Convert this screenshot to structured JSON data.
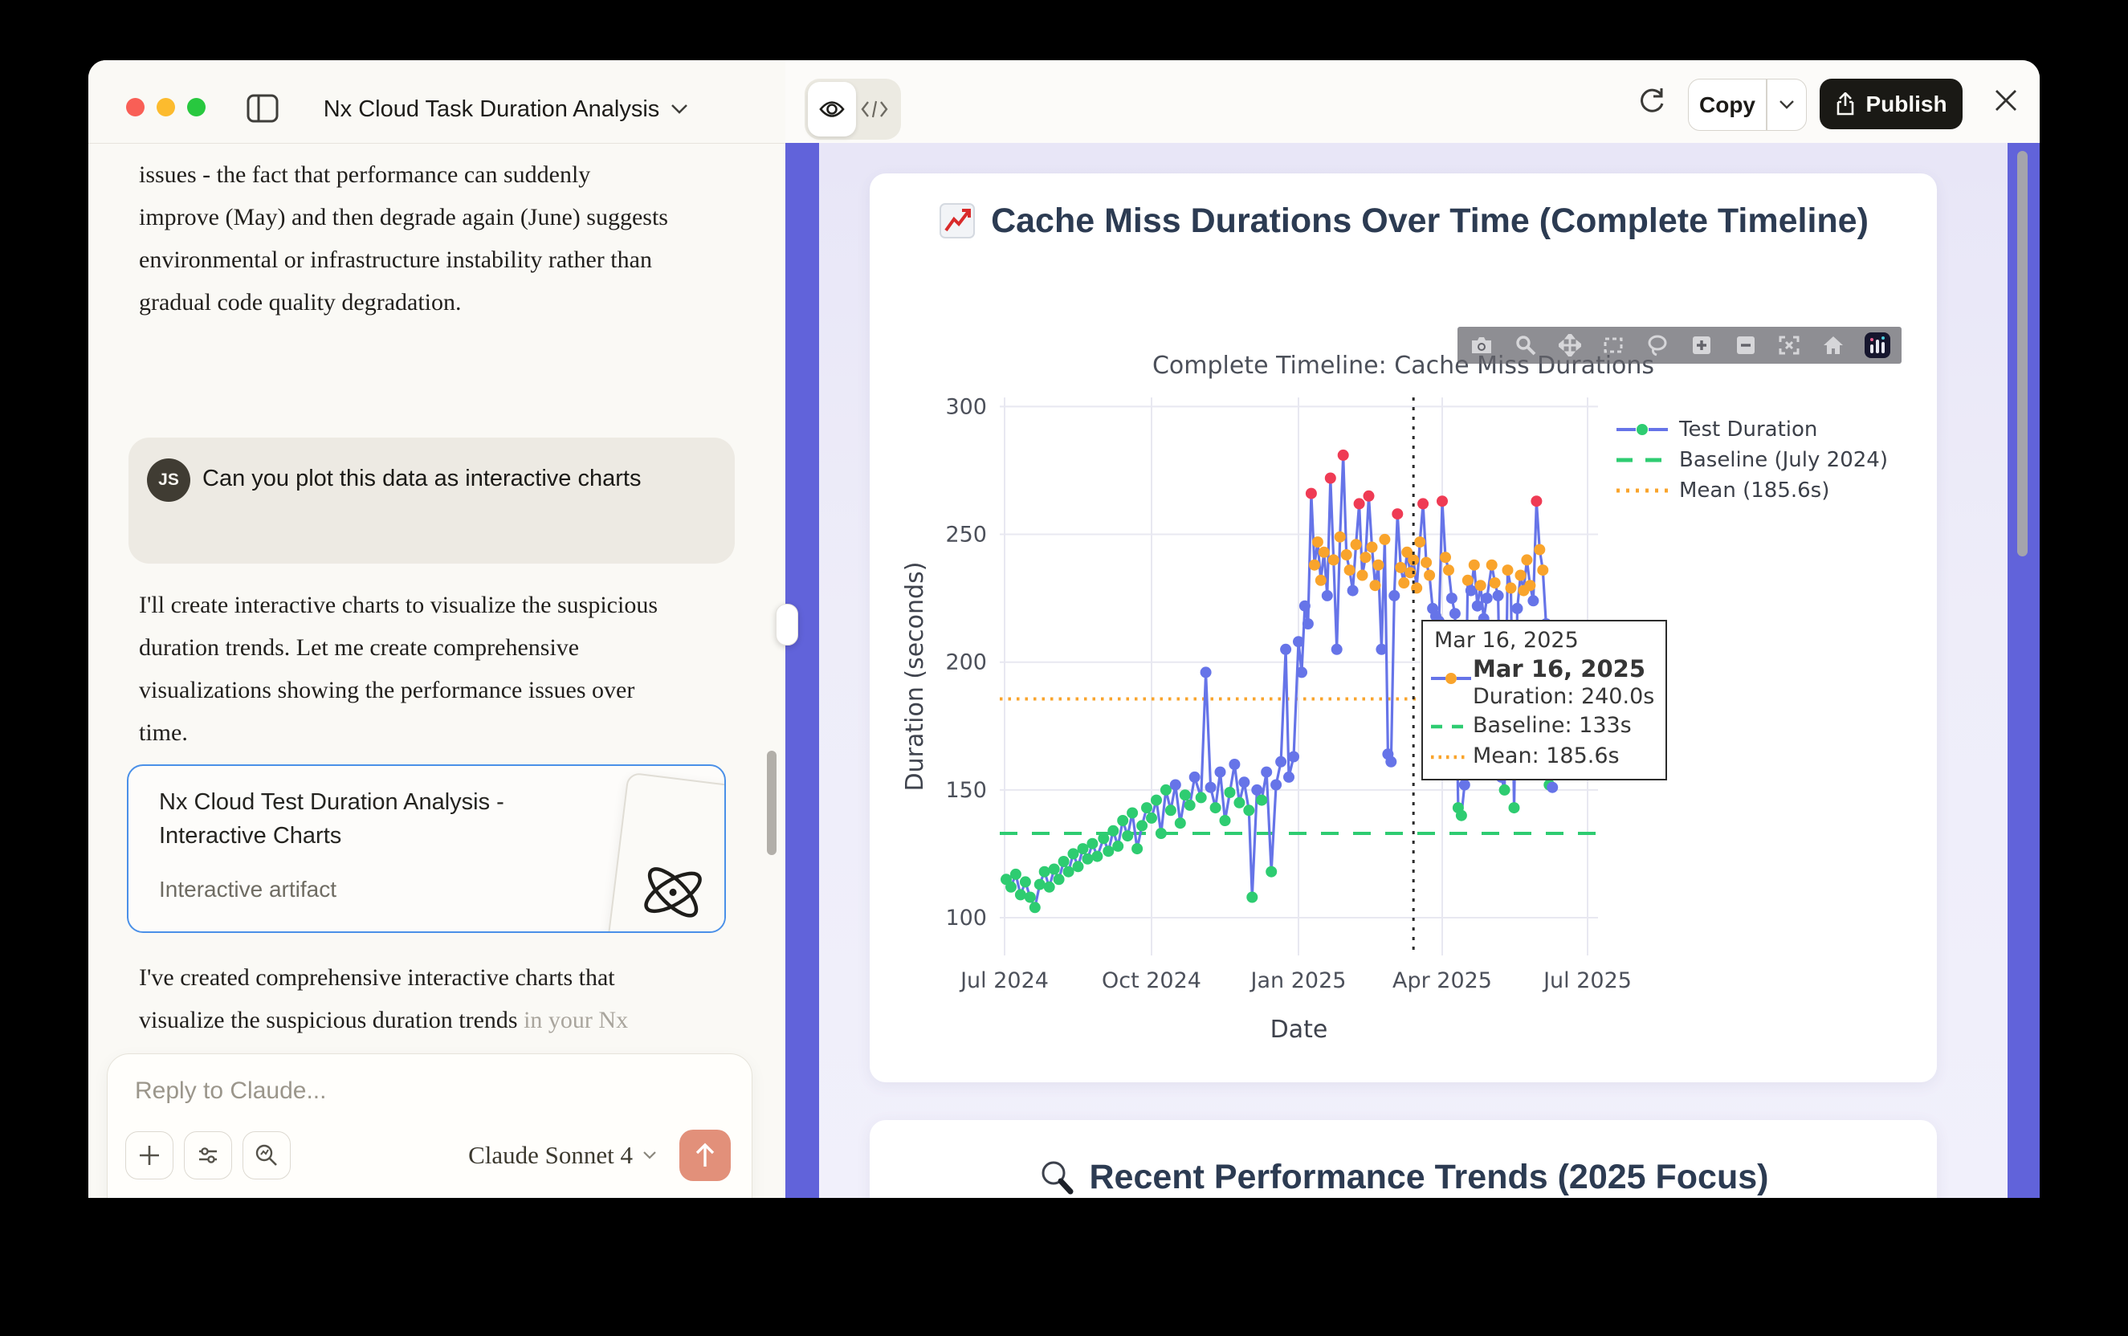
{
  "window": {
    "title": "Nx Cloud Task Duration Analysis",
    "traffic_light_colors": [
      "#f95f56",
      "#fcbb2e",
      "#28c83f"
    ]
  },
  "chat": {
    "paragraph1": "issues - the fact that performance can suddenly improve (May) and then degrade again (June) suggests environmental or infrastructure instability rather than gradual code quality degradation.",
    "avatar_initials": "JS",
    "user_message": "Can you plot this data as interactive charts",
    "paragraph2": "I'll create interactive charts to visualize the suspicious duration trends. Let me create comprehensive visualizations showing the performance issues over time.",
    "artifact_card": {
      "title": "Nx Cloud Test Duration Analysis - Interactive Charts",
      "subtitle": "Interactive artifact"
    },
    "paragraph3_visible": "I've created comprehensive interactive charts that visualize the suspicious duration trends",
    "paragraph3_faded": "in your Nx Cloud test data. Here's what the",
    "input_placeholder": "Reply to Claude...",
    "model_label": "Claude Sonnet 4"
  },
  "artifact_header": {
    "copy_label": "Copy",
    "publish_label": "Publish"
  },
  "cards": {
    "chart_card_title": "Cache Miss Durations Over Time (Complete Timeline)",
    "trends_card_title": "Recent Performance Trends (2025 Focus)"
  },
  "colors": {
    "accent_purple": "#6163da",
    "send_button": "#e2907a",
    "publish_bg": "#1a1915",
    "artifact_border": "#4a90e8",
    "heading_navy": "#2c3b52"
  },
  "chart_data": {
    "type": "line",
    "title": "Complete Timeline: Cache Miss Durations",
    "xlabel": "Date",
    "ylabel": "Duration (seconds)",
    "ylim": [
      85,
      304
    ],
    "grid": true,
    "legend_position": "right",
    "y_ticks": [
      100,
      150,
      200,
      250,
      300
    ],
    "x_ticks": [
      {
        "day": 0,
        "label": "Jul 2024"
      },
      {
        "day": 92,
        "label": "Oct 2024"
      },
      {
        "day": 184,
        "label": "Jan 2025"
      },
      {
        "day": 274,
        "label": "Apr 2025"
      },
      {
        "day": 365,
        "label": "Jul 2025"
      }
    ],
    "baseline_value": 133,
    "mean_value": 185.6,
    "legend": [
      "Test Duration",
      "Baseline (July 2024)",
      "Mean (185.6s)"
    ],
    "hover": {
      "day": 256,
      "date_header": "Mar 16, 2025",
      "date_bold": "Mar 16, 2025",
      "duration": "Duration: 240.0s",
      "baseline": "Baseline: 133s",
      "mean": "Mean: 185.6s"
    },
    "colors": {
      "line": "#6674e8",
      "grid": "#e8e8f1",
      "spike": "#2b2b2b",
      "mean": "#f9a42c",
      "baseline": "#2ecc71",
      "g": "#2ecc71",
      "b": "#6674e8",
      "o": "#f9a42c",
      "r": "#ef3b54"
    },
    "points": [
      [
        1,
        115,
        "g"
      ],
      [
        4,
        112,
        "g"
      ],
      [
        7,
        117,
        "g"
      ],
      [
        10,
        109,
        "g"
      ],
      [
        13,
        114,
        "g"
      ],
      [
        16,
        108,
        "g"
      ],
      [
        19,
        104,
        "g"
      ],
      [
        22,
        113,
        "g"
      ],
      [
        25,
        118,
        "g"
      ],
      [
        28,
        112,
        "g"
      ],
      [
        31,
        119,
        "g"
      ],
      [
        34,
        115,
        "g"
      ],
      [
        37,
        122,
        "g"
      ],
      [
        40,
        118,
        "g"
      ],
      [
        43,
        125,
        "g"
      ],
      [
        46,
        120,
        "g"
      ],
      [
        49,
        127,
        "g"
      ],
      [
        52,
        123,
        "g"
      ],
      [
        55,
        129,
        "g"
      ],
      [
        58,
        124,
        "g"
      ],
      [
        62,
        131,
        "g"
      ],
      [
        65,
        126,
        "g"
      ],
      [
        68,
        134,
        "g"
      ],
      [
        71,
        128,
        "g"
      ],
      [
        74,
        138,
        "g"
      ],
      [
        77,
        132,
        "g"
      ],
      [
        80,
        141,
        "g"
      ],
      [
        83,
        127,
        "g"
      ],
      [
        86,
        136,
        "g"
      ],
      [
        89,
        143,
        "g"
      ],
      [
        92,
        139,
        "g"
      ],
      [
        95,
        146,
        "g"
      ],
      [
        98,
        133,
        "g"
      ],
      [
        101,
        150,
        "g"
      ],
      [
        104,
        142,
        "g"
      ],
      [
        107,
        152,
        "b"
      ],
      [
        110,
        137,
        "g"
      ],
      [
        113,
        148,
        "g"
      ],
      [
        116,
        144,
        "g"
      ],
      [
        119,
        155,
        "b"
      ],
      [
        123,
        147,
        "g"
      ],
      [
        126,
        196,
        "b"
      ],
      [
        129,
        151,
        "b"
      ],
      [
        132,
        143,
        "g"
      ],
      [
        135,
        157,
        "b"
      ],
      [
        138,
        138,
        "g"
      ],
      [
        141,
        149,
        "g"
      ],
      [
        144,
        160,
        "b"
      ],
      [
        147,
        145,
        "g"
      ],
      [
        150,
        153,
        "b"
      ],
      [
        153,
        142,
        "g"
      ],
      [
        155,
        108,
        "g"
      ],
      [
        158,
        150,
        "b"
      ],
      [
        161,
        146,
        "g"
      ],
      [
        164,
        157,
        "b"
      ],
      [
        167,
        118,
        "g"
      ],
      [
        170,
        152,
        "b"
      ],
      [
        173,
        161,
        "b"
      ],
      [
        176,
        205,
        "b"
      ],
      [
        178,
        155,
        "b"
      ],
      [
        181,
        163,
        "b"
      ],
      [
        184,
        208,
        "b"
      ],
      [
        186,
        196,
        "b"
      ],
      [
        188,
        222,
        "b"
      ],
      [
        190,
        215,
        "b"
      ],
      [
        192,
        266,
        "r"
      ],
      [
        194,
        238,
        "o"
      ],
      [
        196,
        247,
        "o"
      ],
      [
        198,
        232,
        "o"
      ],
      [
        200,
        243,
        "o"
      ],
      [
        202,
        226,
        "b"
      ],
      [
        204,
        272,
        "r"
      ],
      [
        206,
        240,
        "o"
      ],
      [
        208,
        205,
        "b"
      ],
      [
        210,
        249,
        "o"
      ],
      [
        212,
        281,
        "r"
      ],
      [
        214,
        242,
        "o"
      ],
      [
        216,
        236,
        "o"
      ],
      [
        218,
        228,
        "b"
      ],
      [
        220,
        246,
        "o"
      ],
      [
        222,
        262,
        "r"
      ],
      [
        224,
        234,
        "o"
      ],
      [
        226,
        241,
        "o"
      ],
      [
        228,
        265,
        "r"
      ],
      [
        230,
        245,
        "o"
      ],
      [
        232,
        230,
        "o"
      ],
      [
        234,
        238,
        "o"
      ],
      [
        236,
        205,
        "b"
      ],
      [
        238,
        248,
        "o"
      ],
      [
        240,
        164,
        "b"
      ],
      [
        242,
        161,
        "b"
      ],
      [
        244,
        226,
        "b"
      ],
      [
        246,
        258,
        "r"
      ],
      [
        248,
        237,
        "o"
      ],
      [
        250,
        231,
        "o"
      ],
      [
        252,
        243,
        "o"
      ],
      [
        254,
        235,
        "o"
      ],
      [
        256,
        240,
        "o"
      ],
      [
        258,
        229,
        "o"
      ],
      [
        260,
        247,
        "o"
      ],
      [
        262,
        262,
        "r"
      ],
      [
        264,
        239,
        "o"
      ],
      [
        266,
        234,
        "o"
      ],
      [
        268,
        221,
        "b"
      ],
      [
        270,
        218,
        "b"
      ],
      [
        272,
        216,
        "b"
      ],
      [
        274,
        263,
        "r"
      ],
      [
        276,
        241,
        "o"
      ],
      [
        278,
        236,
        "o"
      ],
      [
        280,
        225,
        "b"
      ],
      [
        282,
        219,
        "b"
      ],
      [
        284,
        143,
        "g"
      ],
      [
        286,
        140,
        "g"
      ],
      [
        288,
        152,
        "b"
      ],
      [
        290,
        232,
        "o"
      ],
      [
        292,
        228,
        "b"
      ],
      [
        294,
        238,
        "o"
      ],
      [
        296,
        222,
        "b"
      ],
      [
        298,
        230,
        "o"
      ],
      [
        300,
        217,
        "b"
      ],
      [
        302,
        225,
        "b"
      ],
      [
        305,
        238,
        "o"
      ],
      [
        307,
        231,
        "o"
      ],
      [
        309,
        226,
        "b"
      ],
      [
        311,
        155,
        "b"
      ],
      [
        313,
        150,
        "g"
      ],
      [
        315,
        236,
        "o"
      ],
      [
        317,
        229,
        "o"
      ],
      [
        319,
        143,
        "g"
      ],
      [
        321,
        221,
        "b"
      ],
      [
        323,
        234,
        "o"
      ],
      [
        325,
        228,
        "o"
      ],
      [
        327,
        240,
        "o"
      ],
      [
        329,
        230,
        "o"
      ],
      [
        331,
        224,
        "b"
      ],
      [
        333,
        263,
        "r"
      ],
      [
        335,
        244,
        "o"
      ],
      [
        337,
        236,
        "o"
      ],
      [
        339,
        215,
        "b"
      ],
      [
        341,
        152,
        "g"
      ],
      [
        343,
        151,
        "b"
      ]
    ]
  }
}
